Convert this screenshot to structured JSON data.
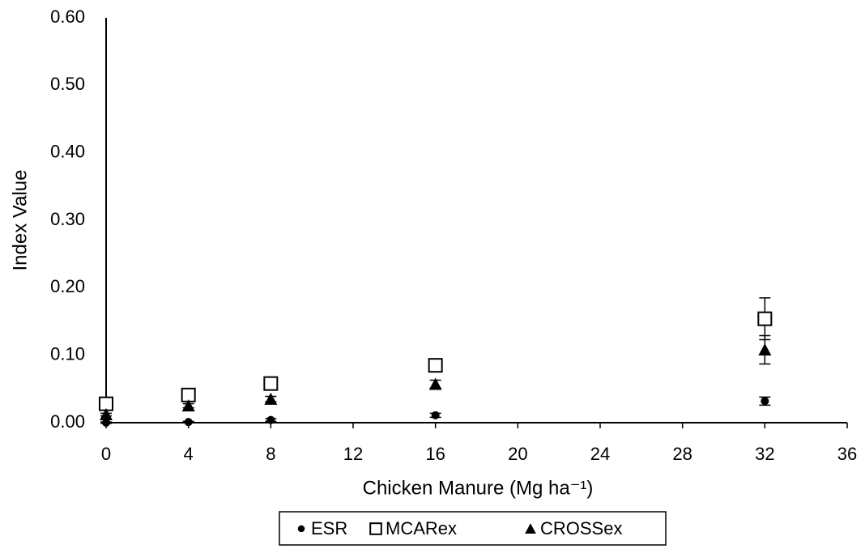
{
  "chart_data": {
    "type": "scatter",
    "x_label": "Chicken Manure (Mg ha⁻¹)",
    "y_label": "Index Value",
    "x": [
      0,
      4,
      8,
      16,
      32
    ],
    "series": [
      {
        "name": "ESR",
        "color": "#000000",
        "marker": "circle",
        "values": [
          0.0,
          0.001,
          0.004,
          0.011,
          0.032
        ],
        "errors": [
          0.001,
          0.001,
          0.002,
          0.003,
          0.006
        ]
      },
      {
        "name": "MCARex",
        "color": "#000000",
        "marker": "open-square",
        "values": [
          0.028,
          0.041,
          0.058,
          0.085,
          0.154
        ],
        "errors": [
          0.003,
          0.004,
          0.005,
          0.007,
          0.031
        ]
      },
      {
        "name": "CROSSex",
        "color": "#000000",
        "marker": "triangle",
        "values": [
          0.012,
          0.025,
          0.035,
          0.057,
          0.108
        ],
        "errors": [
          0.002,
          0.003,
          0.004,
          0.006,
          0.021
        ]
      }
    ],
    "xlim": [
      0,
      36
    ],
    "xticks": [
      0,
      4,
      8,
      12,
      16,
      20,
      24,
      28,
      32,
      36
    ],
    "ylim": [
      0,
      0.6
    ],
    "yticks": [
      {
        "value": 0,
        "label": "0.00"
      },
      {
        "value": 0.1,
        "label": "0.10"
      },
      {
        "value": 0.2,
        "label": "0.20"
      },
      {
        "value": 0.3,
        "label": "0.30"
      },
      {
        "value": 0.4,
        "label": "0.40"
      },
      {
        "value": 0.5,
        "label": "0.50"
      },
      {
        "value": 0.6,
        "label": "0.60"
      }
    ],
    "grid": false,
    "legend": "bottom"
  }
}
